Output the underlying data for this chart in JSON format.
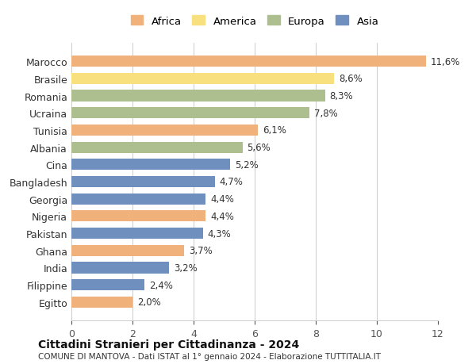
{
  "countries": [
    "Marocco",
    "Brasile",
    "Romania",
    "Ucraina",
    "Tunisia",
    "Albania",
    "Cina",
    "Bangladesh",
    "Georgia",
    "Nigeria",
    "Pakistan",
    "Ghana",
    "India",
    "Filippine",
    "Egitto"
  ],
  "values": [
    11.6,
    8.6,
    8.3,
    7.8,
    6.1,
    5.6,
    5.2,
    4.7,
    4.4,
    4.4,
    4.3,
    3.7,
    3.2,
    2.4,
    2.0
  ],
  "labels": [
    "11,6%",
    "8,6%",
    "8,3%",
    "7,8%",
    "6,1%",
    "5,6%",
    "5,2%",
    "4,7%",
    "4,4%",
    "4,4%",
    "4,3%",
    "3,7%",
    "3,2%",
    "2,4%",
    "2,0%"
  ],
  "continents": [
    "Africa",
    "America",
    "Europa",
    "Europa",
    "Africa",
    "Europa",
    "Asia",
    "Asia",
    "Asia",
    "Africa",
    "Asia",
    "Africa",
    "Asia",
    "Asia",
    "Africa"
  ],
  "colors": {
    "Africa": "#F0B27A",
    "America": "#F9E07F",
    "Europa": "#ADBF8F",
    "Asia": "#6F8FBF"
  },
  "legend_order": [
    "Africa",
    "America",
    "Europa",
    "Asia"
  ],
  "legend_colors": [
    "#F0B27A",
    "#F9E07F",
    "#ADBF8F",
    "#6F8FBF"
  ],
  "title": "Cittadini Stranieri per Cittadinanza - 2024",
  "subtitle": "COMUNE DI MANTOVA - Dati ISTAT al 1° gennaio 2024 - Elaborazione TUTTITALIA.IT",
  "xlim": [
    0,
    12
  ],
  "xticks": [
    0,
    2,
    4,
    6,
    8,
    10,
    12
  ],
  "background_color": "#ffffff",
  "bar_height": 0.65
}
